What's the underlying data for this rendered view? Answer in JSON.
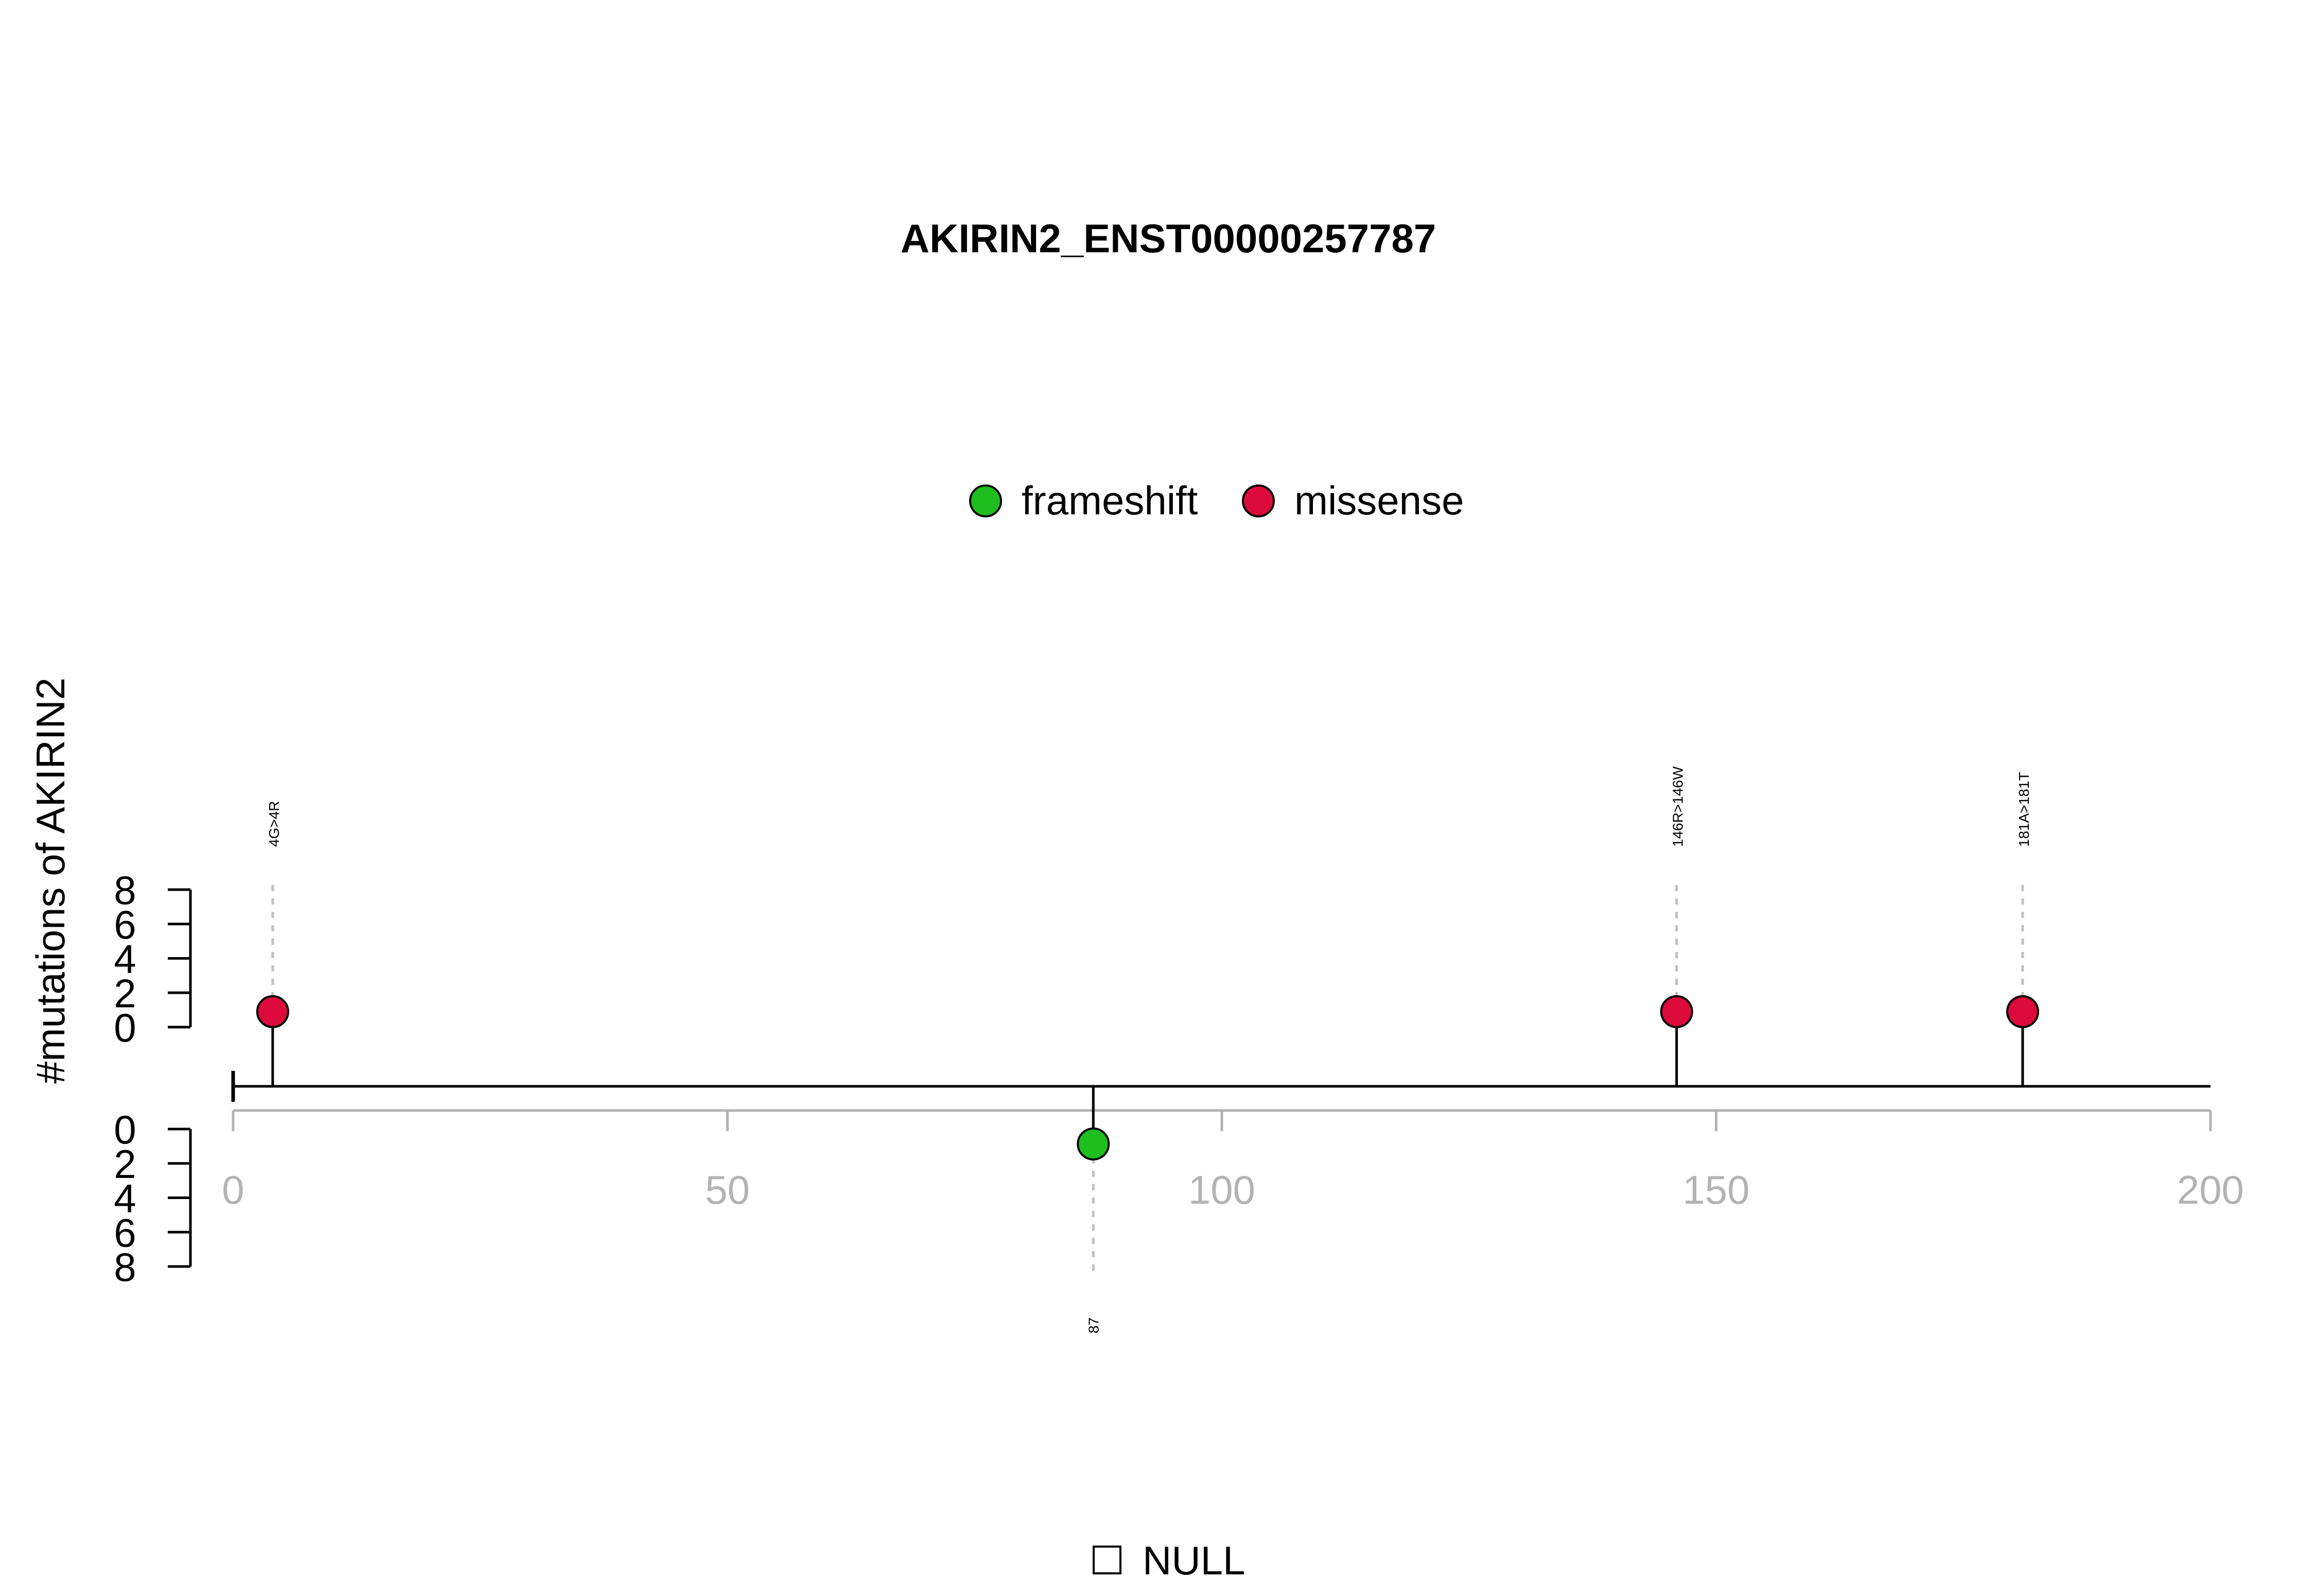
{
  "chart_data": {
    "type": "lollipop",
    "title": "AKIRIN2_ENST00000257787",
    "ylabel": "#mutations of AKIRIN2",
    "xlim": [
      0,
      200
    ],
    "x_ticks": [
      "0",
      "50",
      "100",
      "150",
      "200"
    ],
    "y_ticks_upper": [
      "0",
      "2",
      "4",
      "6",
      "8"
    ],
    "y_ticks_lower": [
      "0",
      "2",
      "4",
      "6",
      "8"
    ],
    "ylim": [
      0,
      8
    ],
    "legend": {
      "placement": "top-center",
      "items": [
        {
          "label": "frameshift",
          "color": "#1fbe1f"
        },
        {
          "label": "missense",
          "color": "#dc0a3c"
        }
      ]
    },
    "domain_legend": {
      "placement": "bottom-center",
      "label": "NULL"
    },
    "mutations": [
      {
        "position": 4,
        "label": "4G>4R",
        "type": "missense",
        "side": "up",
        "count": 1
      },
      {
        "position": 87,
        "label": "87",
        "type": "frameshift",
        "side": "down",
        "count": 1
      },
      {
        "position": 146,
        "label": "146R>146W",
        "type": "missense",
        "side": "up",
        "count": 1
      },
      {
        "position": 181,
        "label": "181A>181T",
        "type": "missense",
        "side": "up",
        "count": 1
      }
    ]
  }
}
